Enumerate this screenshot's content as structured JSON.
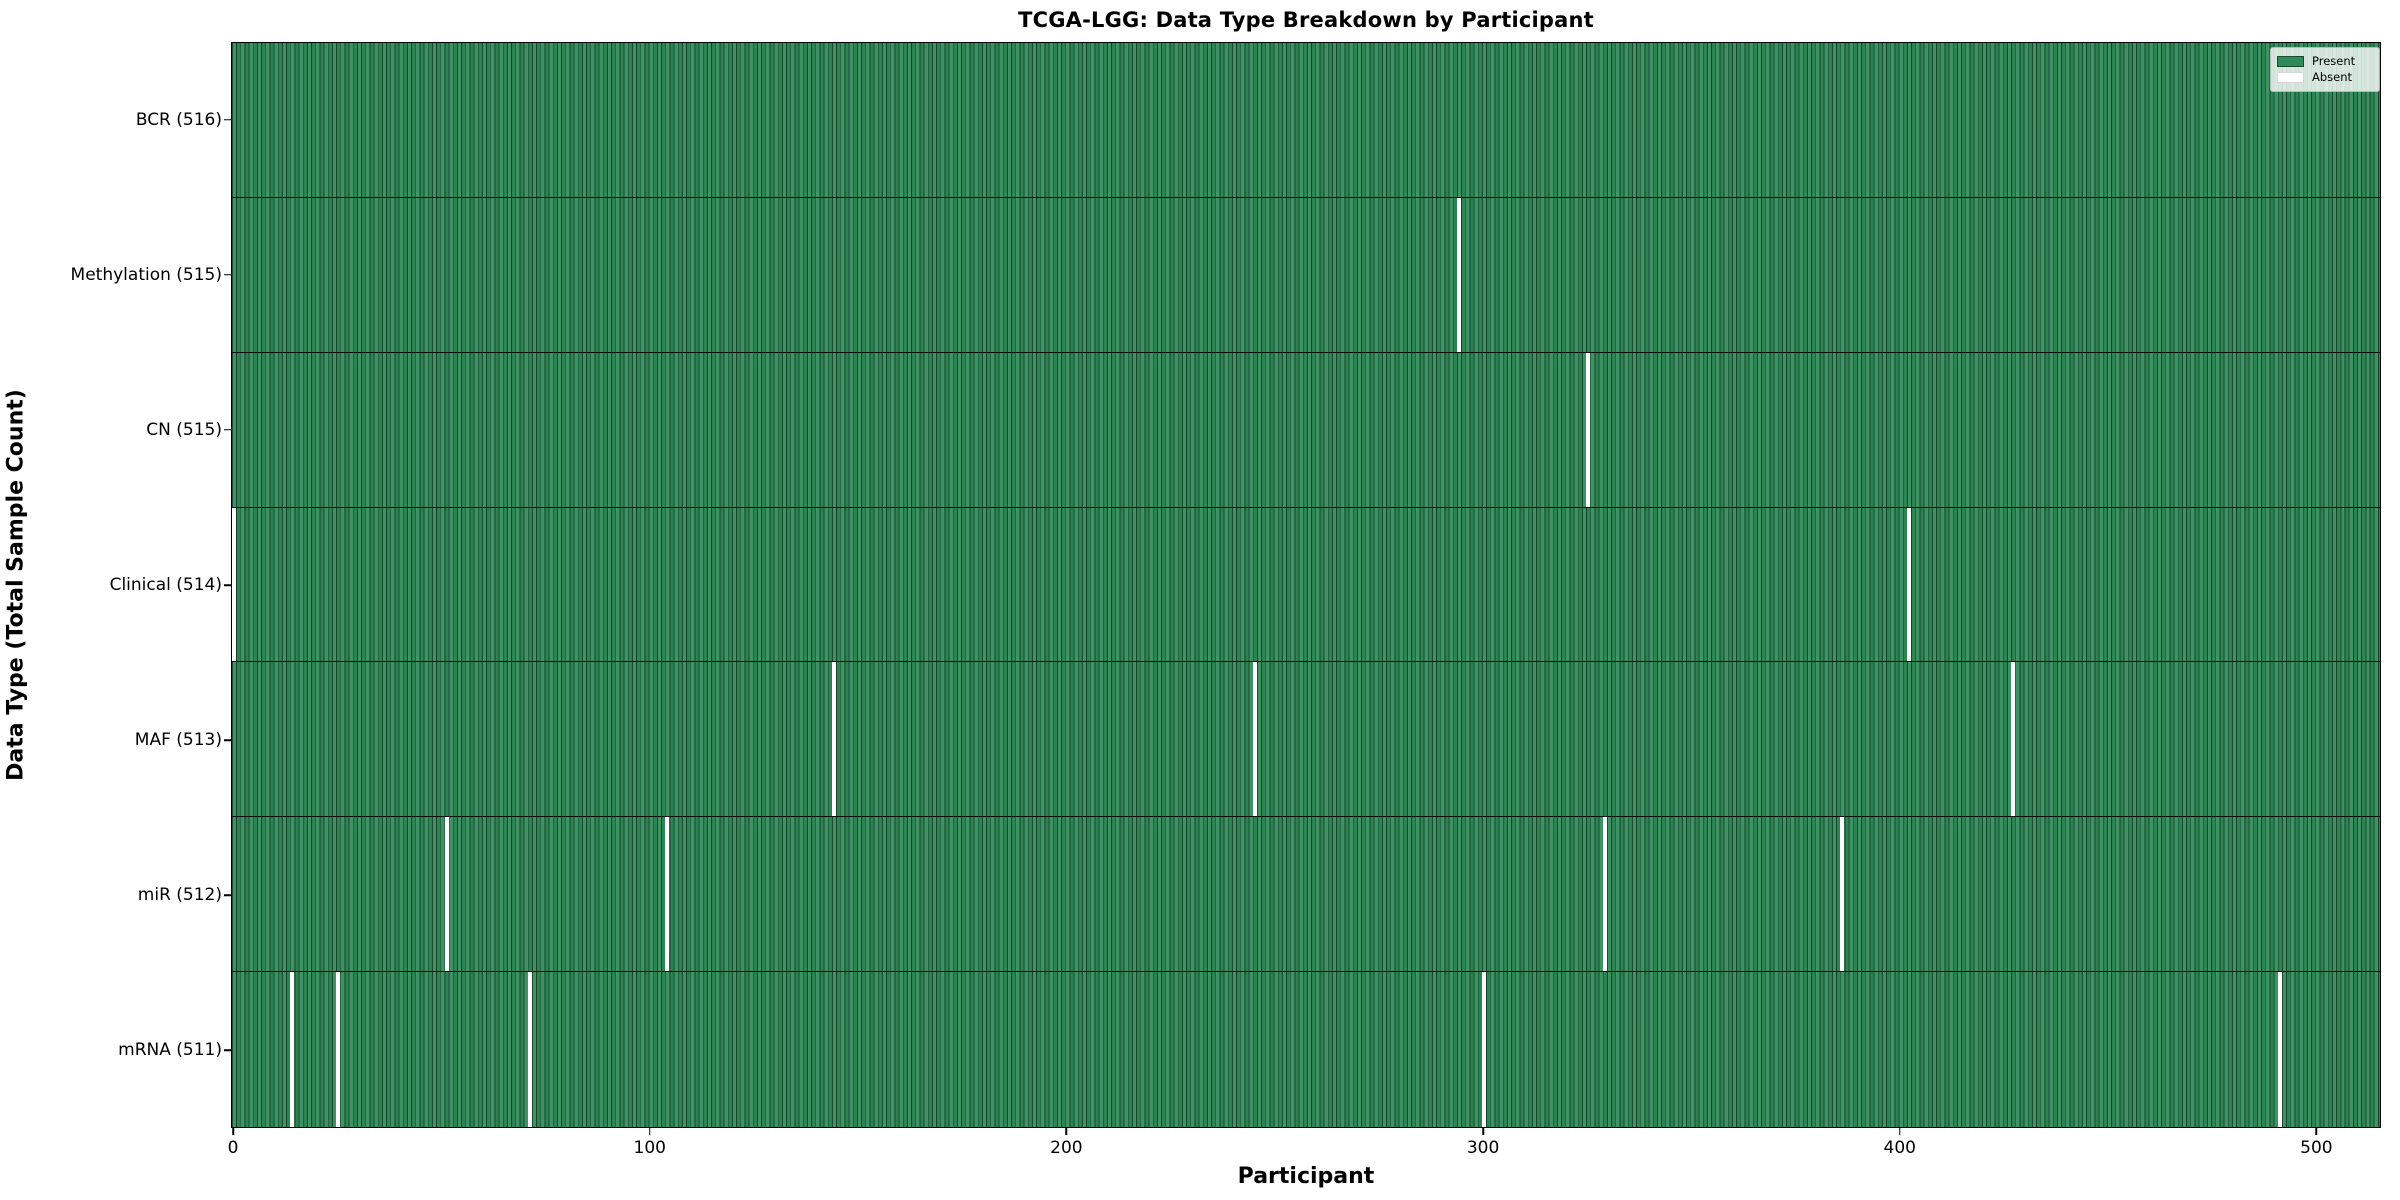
{
  "title": "TCGA-LGG: Data Type Breakdown by Participant",
  "x_axis": {
    "label": "Participant",
    "ticks": [
      "0",
      "100",
      "200",
      "300",
      "400",
      "500"
    ],
    "tick_values": [
      0,
      100,
      200,
      300,
      400,
      500
    ]
  },
  "y_axis": {
    "label": "Data Type (Total Sample Count)"
  },
  "legend": {
    "entries": [
      {
        "label": "Present",
        "color": "#2e8b57"
      },
      {
        "label": "Absent",
        "color": "#ffffff"
      }
    ]
  },
  "colors": {
    "present": "#2e8b57",
    "absent": "#ffffff",
    "bar_edge": "#0a1e12",
    "axis": "#000000",
    "background": "#ffffff"
  },
  "chart_data": {
    "type": "heatmap",
    "subtype": "presence-absence-matrix",
    "title": "TCGA-LGG: Data Type Breakdown by Participant",
    "xlabel": "Participant",
    "ylabel": "Data Type (Total Sample Count)",
    "xlim": [
      -0.5,
      515.5
    ],
    "total_participants": 516,
    "legend_position": "upper right",
    "grid": false,
    "rows": [
      {
        "label": "BCR (516)",
        "data_type": "BCR",
        "present_count": 516,
        "absent_participants": []
      },
      {
        "label": "Methylation (515)",
        "data_type": "Methylation",
        "present_count": 515,
        "absent_participants": [
          294
        ]
      },
      {
        "label": "CN (515)",
        "data_type": "CN",
        "present_count": 515,
        "absent_participants": [
          325
        ]
      },
      {
        "label": "Clinical (514)",
        "data_type": "Clinical",
        "present_count": 514,
        "absent_participants": [
          0,
          402
        ]
      },
      {
        "label": "MAF (513)",
        "data_type": "MAF",
        "present_count": 513,
        "absent_participants": [
          144,
          245,
          427
        ]
      },
      {
        "label": "miR (512)",
        "data_type": "miR",
        "present_count": 512,
        "absent_participants": [
          51,
          104,
          329,
          386
        ]
      },
      {
        "label": "mRNA (511)",
        "data_type": "mRNA",
        "present_count": 511,
        "absent_participants": [
          14,
          25,
          71,
          300,
          491
        ]
      }
    ]
  }
}
